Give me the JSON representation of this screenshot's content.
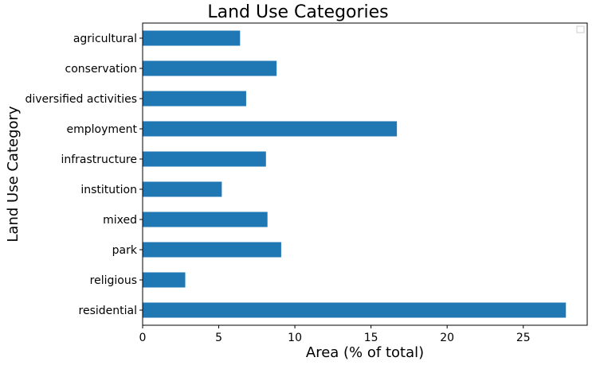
{
  "chart_data": {
    "type": "bar",
    "orientation": "horizontal",
    "title": "Land Use Categories",
    "xlabel": "Area (% of total)",
    "ylabel": "Land Use Category",
    "categories": [
      "agricultural",
      "conservation",
      "diversified activities",
      "employment",
      "infrastructure",
      "institution",
      "mixed",
      "park",
      "religious",
      "residential"
    ],
    "values": [
      6.4,
      8.8,
      6.8,
      16.7,
      8.1,
      5.2,
      8.2,
      9.1,
      2.8,
      27.8
    ],
    "xlim": [
      0,
      29.2
    ],
    "xticks": [
      "0",
      "5",
      "10",
      "15",
      "20",
      "25"
    ],
    "grid": false,
    "legend_placement": "top-right",
    "colors": {
      "bar": "#1f77b4",
      "axis": "#000000"
    }
  }
}
